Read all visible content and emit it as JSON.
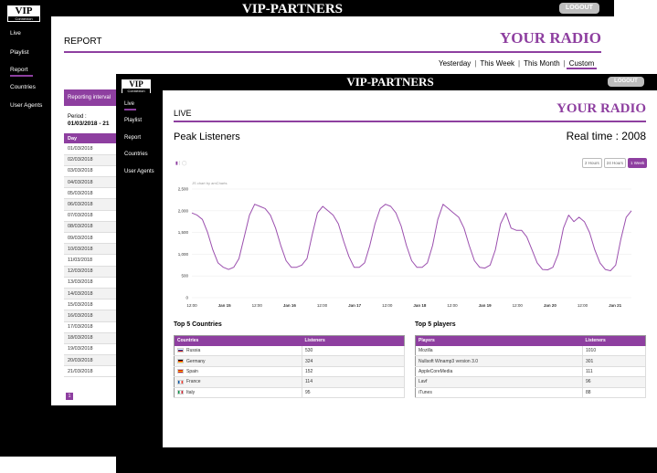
{
  "back": {
    "logo_title": "VIP",
    "logo_sub": "Connexion",
    "brand": "VIP-PARTNERS",
    "logout": "LOGOUT",
    "nav": [
      "Live",
      "Playlist",
      "Report",
      "Countries",
      "User Agents"
    ],
    "section": "REPORT",
    "radio": "YOUR RADIO",
    "tabs": [
      "Yesterday",
      "This Week",
      "This Month",
      "Custom"
    ],
    "interval_label": "Reporting interval",
    "period_label": "Period :",
    "period_value": "01/03/2018 - 21",
    "day_header": "Day",
    "days": [
      "01/03/2018",
      "02/03/2018",
      "03/03/2018",
      "04/03/2018",
      "05/03/2018",
      "06/03/2018",
      "07/03/2018",
      "08/03/2018",
      "09/03/2018",
      "10/03/2018",
      "11/03/2018",
      "12/03/2018",
      "13/03/2018",
      "14/03/2018",
      "15/03/2018",
      "16/03/2018",
      "17/03/2018",
      "18/03/2018",
      "19/03/2018",
      "20/03/2018",
      "21/03/2018"
    ],
    "page": "1"
  },
  "front": {
    "logo_title": "VIP",
    "logo_sub": "Connexion",
    "brand": "VIP-PARTNERS",
    "logout": "LOGOUT",
    "nav": [
      "Live",
      "Playlist",
      "Report",
      "Countries",
      "User Agents"
    ],
    "section": "LIVE",
    "radio": "YOUR RADIO",
    "peak_title": "Peak Listeners",
    "realtime_label": "Real time :",
    "realtime_value": "2008",
    "range_buttons": [
      "2 Hours",
      "24 Hours",
      "1 Week"
    ],
    "credit": "JS chart by amCharts",
    "countries_title": "Top 5 Countries",
    "countries_headers": [
      "Countries",
      "Listeners"
    ],
    "countries": [
      {
        "name": "Russia",
        "value": "530",
        "flag": [
          "#ffffff",
          "#1c3fa8",
          "#d52b1e"
        ]
      },
      {
        "name": "Germany",
        "value": "324",
        "flag": [
          "#000000",
          "#dd0000",
          "#ffce00"
        ]
      },
      {
        "name": "Spain",
        "value": "152",
        "flag": [
          "#c60b1e",
          "#ffc400",
          "#c60b1e"
        ]
      },
      {
        "name": "France",
        "value": "114",
        "flag": [
          "#0055a4",
          "#ffffff",
          "#ef4135"
        ]
      },
      {
        "name": "Italy",
        "value": "95",
        "flag": [
          "#009246",
          "#ffffff",
          "#ce2b37"
        ]
      }
    ],
    "players_title": "Top 5 players",
    "players_headers": [
      "Players",
      "Listeners"
    ],
    "players": [
      {
        "name": "Mozilla",
        "value": "1010"
      },
      {
        "name": "Nullsoft Winamp3 version 3.0",
        "value": "301"
      },
      {
        "name": "AppleCoreMedia",
        "value": "111"
      },
      {
        "name": "Lavf",
        "value": "96"
      },
      {
        "name": "iTunes",
        "value": "88"
      }
    ]
  },
  "colors": {
    "accent": "#8e3fa0",
    "bg": "#000000"
  },
  "chart_data": {
    "type": "line",
    "y_ticks": [
      "0",
      "500",
      "1,000",
      "1,500",
      "2,000",
      "2,500"
    ],
    "ylim": [
      0,
      2500
    ],
    "x_ticks": [
      "12:00",
      "Jan 15",
      "12:00",
      "Jan 16",
      "12:00",
      "Jan 17",
      "12:00",
      "Jan 18",
      "12:00",
      "Jan 19",
      "12:00",
      "Jan 20",
      "12:00",
      "Jan 21"
    ],
    "series": [
      {
        "values": [
          1950,
          1900,
          1800,
          1500,
          1100,
          800,
          700,
          650,
          700,
          900,
          1400,
          1900,
          2150,
          2100,
          2050,
          1900,
          1600,
          1200,
          850,
          700,
          700,
          750,
          900,
          1450,
          1950,
          2100,
          2000,
          1900,
          1700,
          1300,
          950,
          700,
          700,
          800,
          1200,
          1700,
          2050,
          2150,
          2100,
          1950,
          1650,
          1200,
          850,
          700,
          700,
          800,
          1200,
          1800,
          2150,
          2050,
          1950,
          1850,
          1600,
          1200,
          850,
          700,
          680,
          750,
          1100,
          1700,
          1950,
          1600,
          1550,
          1550,
          1400,
          1100,
          800,
          650,
          640,
          700,
          1000,
          1600,
          1900,
          1750,
          1850,
          1750,
          1500,
          1100,
          800,
          650,
          620,
          750,
          1350,
          1850,
          2000
        ]
      }
    ],
    "grid": true
  }
}
